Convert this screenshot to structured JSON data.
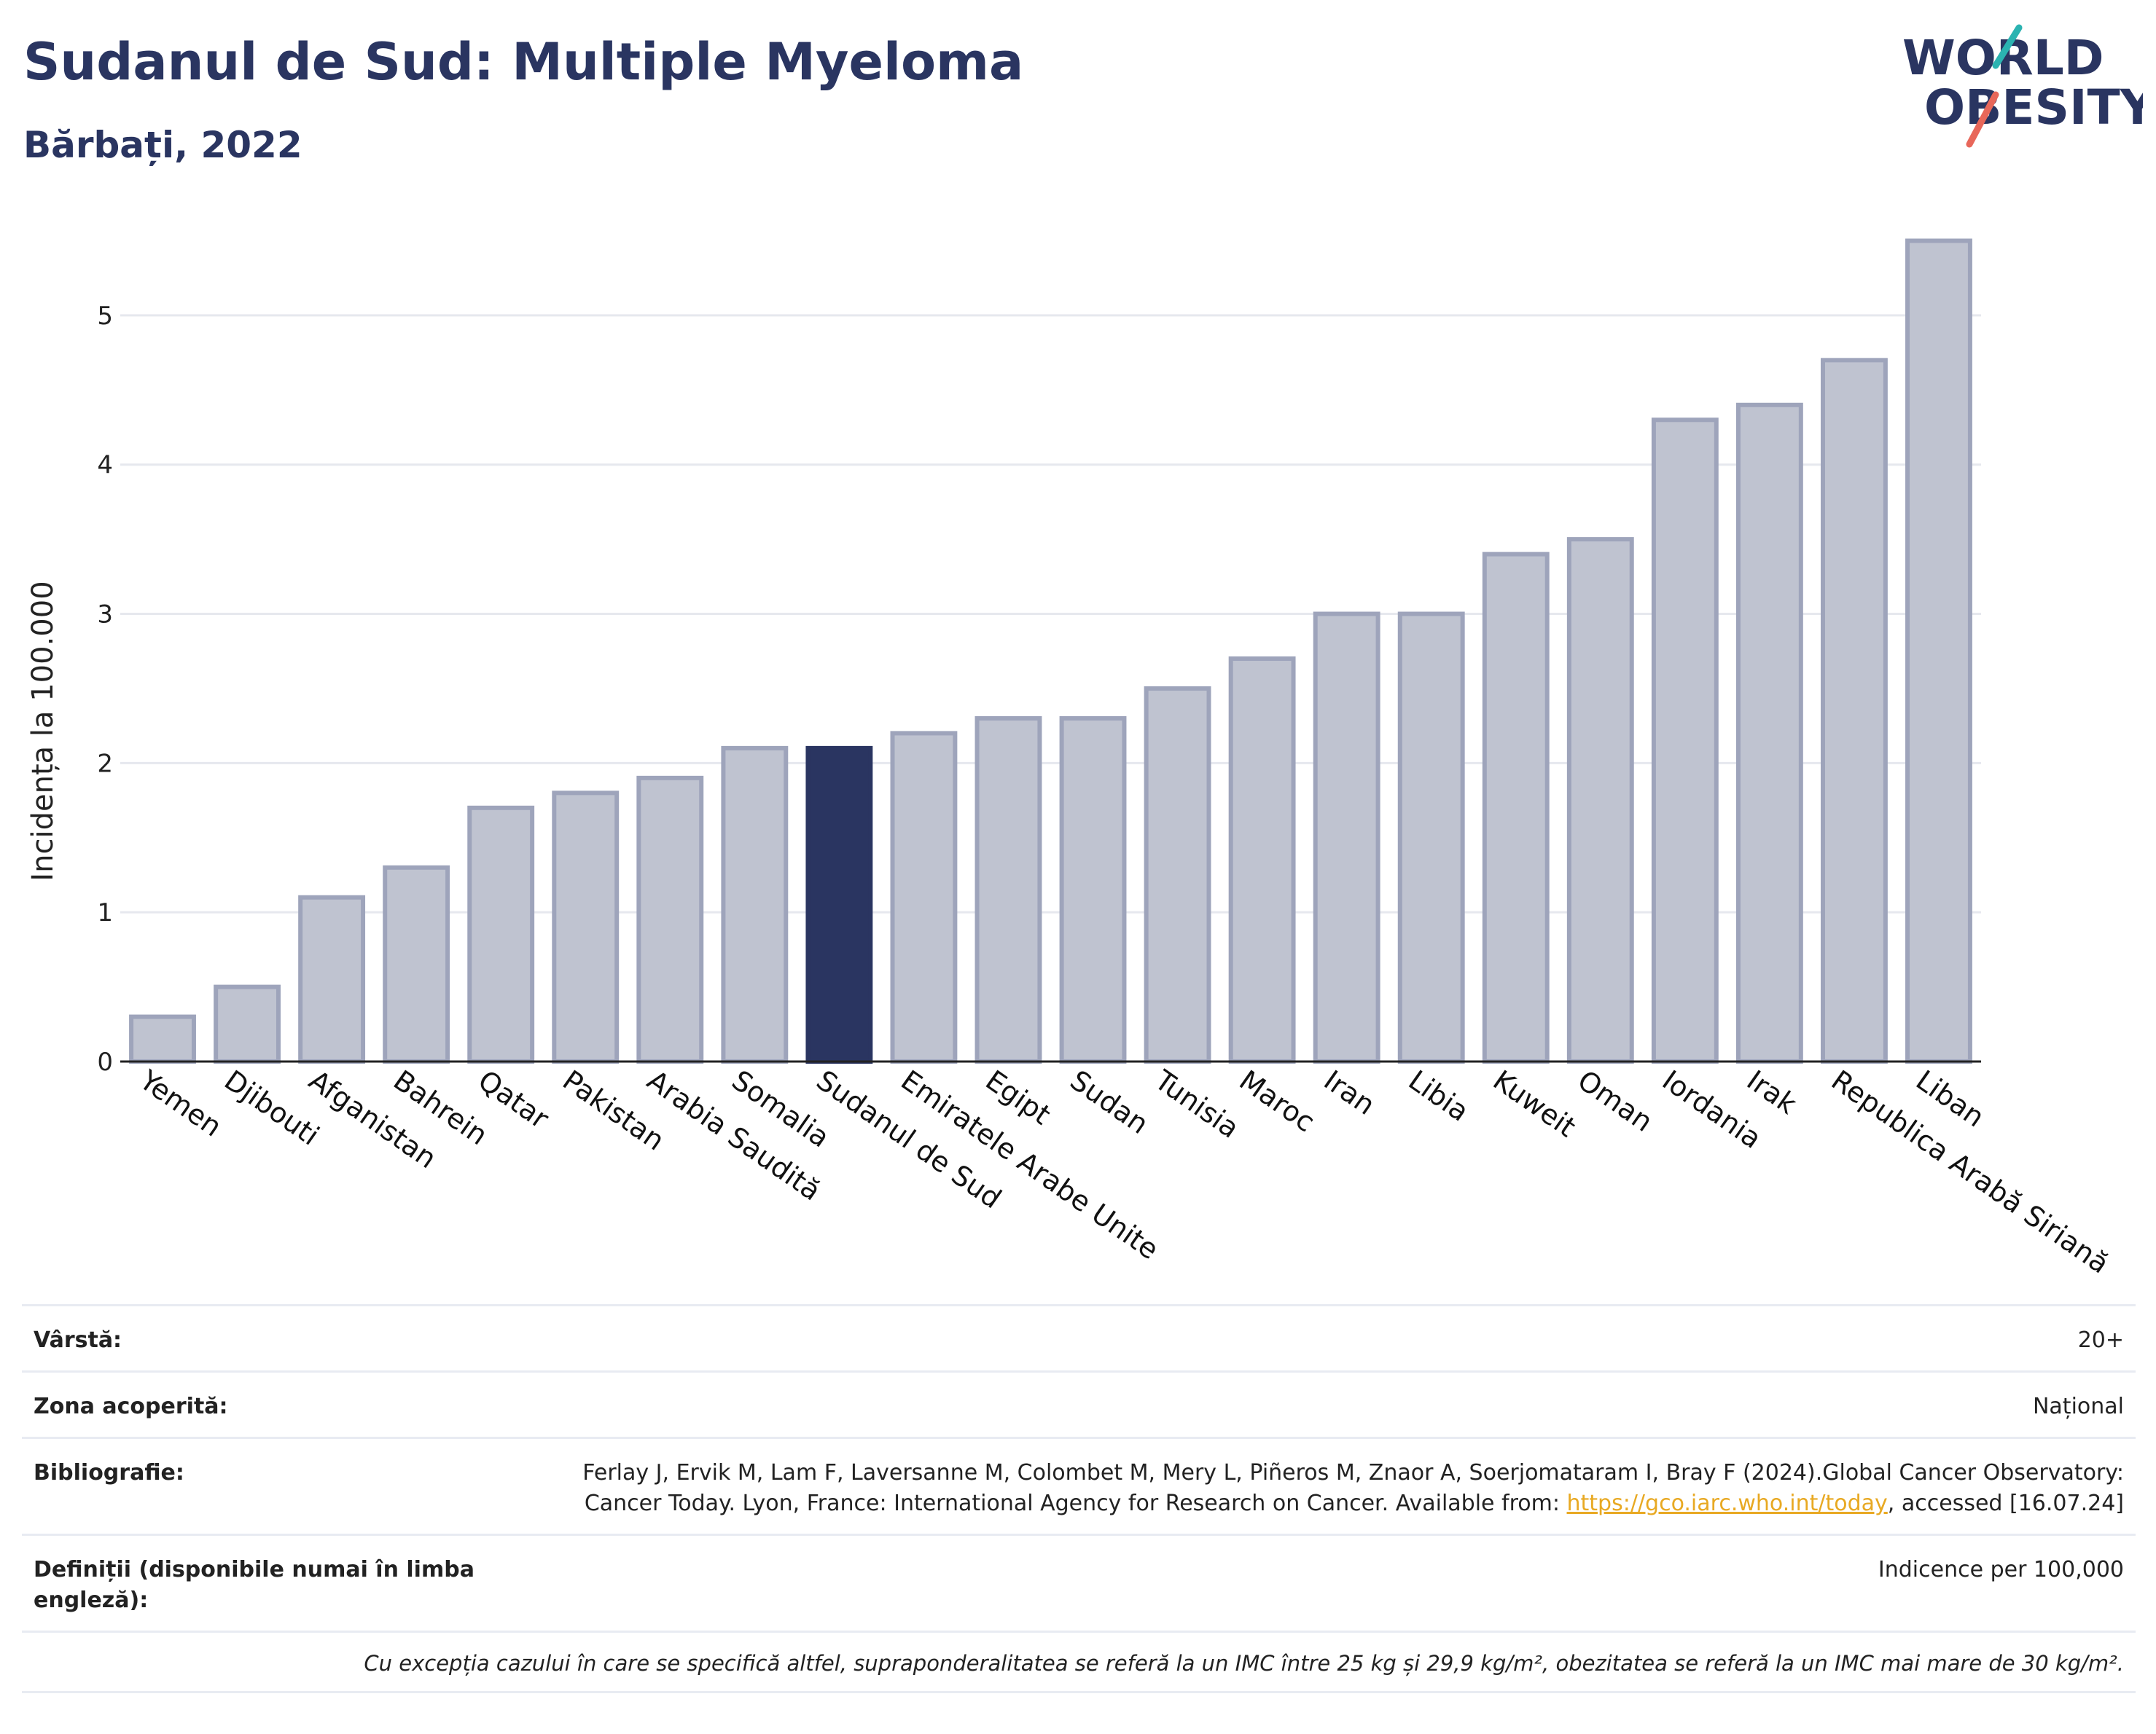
{
  "header": {
    "title": "Sudanul de Sud: Multiple Myeloma",
    "subtitle": "Bărbați, 2022"
  },
  "logo": {
    "line1": "WORLD",
    "line2": "OBESITY"
  },
  "chart_data": {
    "type": "bar",
    "ylabel": "Incidența la 100.000",
    "xlabel": "",
    "ylim": [
      0,
      5.6
    ],
    "yticks": [
      0,
      1,
      2,
      3,
      4,
      5
    ],
    "grid": true,
    "highlight_category": "Sudanul de Sud",
    "colors": {
      "bar": "#bfc3d0",
      "bar_edge": "#9ea4bb",
      "highlight": "#2a3561",
      "grid": "#e6e8ee",
      "axis": "#222222"
    },
    "categories": [
      "Yemen",
      "Djibouti",
      "Afganistan",
      "Bahrein",
      "Qatar",
      "Pakistan",
      "Arabia Saudită",
      "Somalia",
      "Sudanul de Sud",
      "Emiratele Arabe Unite",
      "Egipt",
      "Sudan",
      "Tunisia",
      "Maroc",
      "Iran",
      "Libia",
      "Kuweit",
      "Oman",
      "Iordania",
      "Irak",
      "Republica Arabă Siriană",
      "Liban"
    ],
    "values": [
      0.3,
      0.5,
      1.1,
      1.3,
      1.7,
      1.8,
      1.9,
      2.1,
      2.1,
      2.2,
      2.3,
      2.3,
      2.5,
      2.7,
      3.0,
      3.0,
      3.4,
      3.5,
      4.3,
      4.4,
      4.7,
      5.5
    ]
  },
  "details": {
    "age_label": "Vârstă:",
    "age_value": "20+",
    "area_label": "Zona acoperită:",
    "area_value": "Național",
    "bib_label": "Bibliografie:",
    "bib_text_1": "Ferlay J, Ervik M, Lam F, Laversanne M, Colombet M, Mery L, Piñeros M, Znaor A, Soerjomataram I, Bray F (2024).Global Cancer Observatory: Cancer Today. Lyon, France: International Agency for Research on Cancer. Available from: ",
    "bib_link": "https://gco.iarc.who.int/today",
    "bib_text_2": ", accessed [16.07.24]",
    "def_label": "Definiții (disponibile numai în limba engleză):",
    "def_value": "Indicence per 100,000",
    "note": "Cu excepția cazului în care se specifică altfel, supraponderalitatea se referă la un IMC între 25 kg și 29,9 kg/m², obezitatea se referă la un IMC mai mare de 30 kg/m²."
  }
}
